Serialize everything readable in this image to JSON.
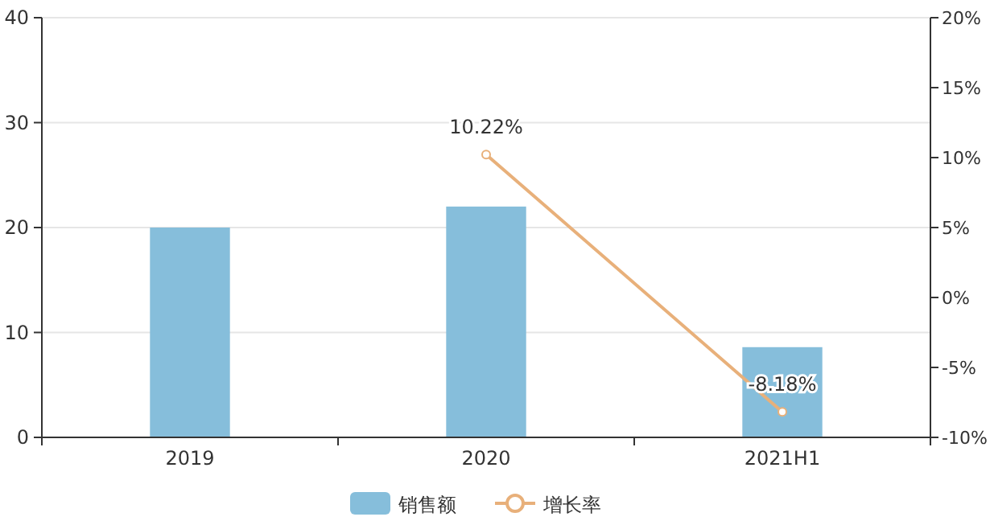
{
  "chart_data": {
    "type": "bar",
    "categories": [
      "2019",
      "2020",
      "2021H1"
    ],
    "series": [
      {
        "name": "销售额",
        "color": "#86bedb",
        "values": [
          20.0,
          22.0,
          8.6
        ]
      },
      {
        "name": "增长率",
        "type": "line",
        "axis": "y2",
        "color": "#e8b07a",
        "values": [
          null,
          10.22,
          -8.18
        ],
        "value_labels": [
          null,
          "10.22%",
          "-8.18%"
        ],
        "marker": "circle"
      }
    ],
    "ylim": [
      0,
      40
    ],
    "yticks": [
      0,
      10,
      20,
      30,
      40
    ],
    "y2lim": [
      -10,
      20
    ],
    "y2ticks": [
      {
        "value": -10,
        "label": "-10%"
      },
      {
        "value": -5,
        "label": "-5%"
      },
      {
        "value": 0,
        "label": "0%"
      },
      {
        "value": 5,
        "label": "5%"
      },
      {
        "value": 10,
        "label": "10%"
      },
      {
        "value": 15,
        "label": "15%"
      },
      {
        "value": 20,
        "label": "20%"
      }
    ],
    "grid": "y",
    "legend": "bottom"
  }
}
